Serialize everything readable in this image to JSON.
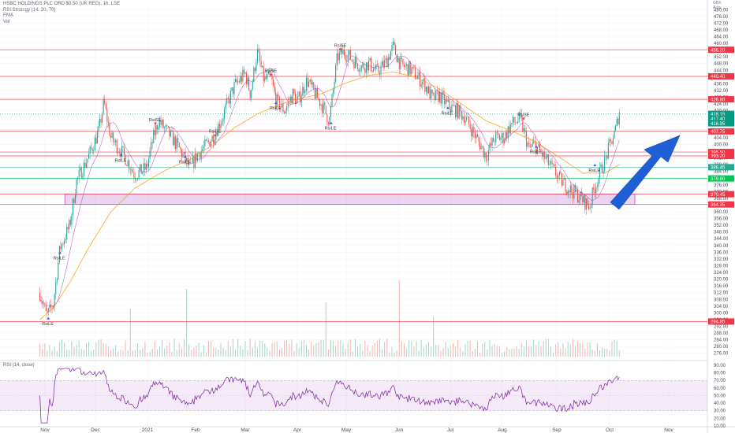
{
  "chart_data": {
    "type": "candlestick",
    "legend": {
      "symbol_line": "HSBC HOLDINGS PLC ORD $0.50 (UK REG), 1h, LSE",
      "indicators": [
        "RSI Strategy (14, 30, 70)",
        "EMA",
        "Vol"
      ]
    },
    "top_right": [
      "GBX",
      "Auto"
    ],
    "price_axis": {
      "ylim": [
        274,
        482
      ],
      "ticks": [
        "276.00",
        "280.00",
        "284.00",
        "288.00",
        "292.00",
        "296.00",
        "300.00",
        "304.00",
        "308.00",
        "312.00",
        "316.00",
        "320.00",
        "324.00",
        "328.00",
        "332.00",
        "336.00",
        "340.00",
        "344.00",
        "348.00",
        "352.00",
        "356.00",
        "360.00",
        "364.00",
        "368.00",
        "372.00",
        "376.00",
        "380.00",
        "384.00",
        "388.00",
        "392.00",
        "396.00",
        "400.00",
        "404.00",
        "408.00",
        "412.00",
        "416.00",
        "420.00",
        "424.00",
        "428.00",
        "432.00",
        "436.00",
        "440.00",
        "444.00",
        "448.00",
        "452.00",
        "456.00",
        "460.00",
        "464.00",
        "468.00",
        "472.00",
        "476.00",
        "480.00"
      ]
    },
    "x_axis": {
      "labels": [
        "Nov",
        "Dec",
        "2021",
        "Feb",
        "Mar",
        "Apr",
        "May",
        "Jun",
        "Jul",
        "Aug",
        "Sep",
        "Oct",
        "Nov"
      ]
    },
    "price_path": [
      [
        "Oct-28",
        312
      ],
      [
        "Nov-02",
        298
      ],
      [
        "Nov-06",
        305
      ],
      [
        "Nov-10",
        338
      ],
      [
        "Nov-16",
        352
      ],
      [
        "Nov-20",
        378
      ],
      [
        "Nov-27",
        392
      ],
      [
        "Dec-03",
        408
      ],
      [
        "Dec-06",
        425
      ],
      [
        "Dec-10",
        404
      ],
      [
        "Dec-16",
        396
      ],
      [
        "Dec-21",
        388
      ],
      [
        "Dec-24",
        382
      ],
      [
        "Dec-31",
        386
      ],
      [
        "Jan-05",
        405
      ],
      [
        "Jan-08",
        414
      ],
      [
        "Jan-13",
        408
      ],
      [
        "Jan-18",
        402
      ],
      [
        "Jan-22",
        396
      ],
      [
        "Jan-28",
        385
      ],
      [
        "Feb-02",
        394
      ],
      [
        "Feb-08",
        400
      ],
      [
        "Feb-12",
        405
      ],
      [
        "Feb-17",
        415
      ],
      [
        "Feb-22",
        428
      ],
      [
        "Feb-25",
        435
      ],
      [
        "Mar-01",
        442
      ],
      [
        "Mar-04",
        430
      ],
      [
        "Mar-08",
        455
      ],
      [
        "Mar-12",
        438
      ],
      [
        "Mar-16",
        440
      ],
      [
        "Mar-19",
        426
      ],
      [
        "Mar-24",
        420
      ],
      [
        "Mar-29",
        430
      ],
      [
        "Apr-01",
        425
      ],
      [
        "Apr-07",
        438
      ],
      [
        "Apr-12",
        430
      ],
      [
        "Apr-16",
        424
      ],
      [
        "Apr-21",
        414
      ],
      [
        "Apr-26",
        452
      ],
      [
        "Apr-30",
        455
      ],
      [
        "May-05",
        450
      ],
      [
        "May-10",
        446
      ],
      [
        "May-14",
        448
      ],
      [
        "May-19",
        443
      ],
      [
        "May-24",
        449
      ],
      [
        "May-28",
        458
      ],
      [
        "Jun-02",
        447
      ],
      [
        "Jun-07",
        445
      ],
      [
        "Jun-11",
        441
      ],
      [
        "Jun-16",
        436
      ],
      [
        "Jun-21",
        427
      ],
      [
        "Jun-25",
        429
      ],
      [
        "Jun-30",
        423
      ],
      [
        "Jul-05",
        420
      ],
      [
        "Jul-09",
        417
      ],
      [
        "Jul-14",
        408
      ],
      [
        "Jul-19",
        399
      ],
      [
        "Jul-22",
        393
      ],
      [
        "Jul-27",
        404
      ],
      [
        "Aug-02",
        404
      ],
      [
        "Aug-06",
        412
      ],
      [
        "Aug-11",
        415
      ],
      [
        "Aug-16",
        397
      ],
      [
        "Aug-19",
        400
      ],
      [
        "Aug-24",
        393
      ],
      [
        "Aug-30",
        384
      ],
      [
        "Sep-03",
        379
      ],
      [
        "Sep-09",
        373
      ],
      [
        "Sep-13",
        370
      ],
      [
        "Sep-16",
        367
      ],
      [
        "Sep-20",
        363
      ],
      [
        "Sep-22",
        372
      ],
      [
        "Sep-27",
        386
      ],
      [
        "Sep-29",
        391
      ],
      [
        "Oct-01",
        399
      ],
      [
        "Oct-04",
        408
      ],
      [
        "Oct-06",
        420
      ]
    ],
    "ema_path": [
      [
        "Oct-28",
        296
      ],
      [
        "Nov-06",
        303
      ],
      [
        "Nov-16",
        318
      ],
      [
        "Nov-27",
        338
      ],
      [
        "Dec-10",
        360
      ],
      [
        "Dec-24",
        374
      ],
      [
        "Jan-13",
        385
      ],
      [
        "Jan-28",
        391
      ],
      [
        "Feb-12",
        400
      ],
      [
        "Feb-25",
        410
      ],
      [
        "Mar-08",
        418
      ],
      [
        "Mar-19",
        423
      ],
      [
        "Apr-01",
        427
      ],
      [
        "Apr-16",
        430
      ],
      [
        "Apr-30",
        436
      ],
      [
        "May-14",
        441
      ],
      [
        "May-28",
        443
      ],
      [
        "Jun-11",
        440
      ],
      [
        "Jun-25",
        433
      ],
      [
        "Jul-09",
        423
      ],
      [
        "Jul-22",
        414
      ],
      [
        "Aug-06",
        408
      ],
      [
        "Aug-19",
        402
      ],
      [
        "Sep-03",
        392
      ],
      [
        "Sep-16",
        383
      ],
      [
        "Sep-29",
        383
      ],
      [
        "Oct-06",
        388
      ]
    ],
    "resistance_levels": [
      {
        "price": 456.2,
        "label": "456.20",
        "color": "#f23645"
      },
      {
        "price": 440.4,
        "label": "440.40",
        "color": "#f23645"
      },
      {
        "price": 426.8,
        "label": "426.80",
        "color": "#f23645"
      },
      {
        "price": 407.75,
        "label": "407.75",
        "color": "#f23645"
      },
      {
        "price": 395.5,
        "label": "395.50",
        "color": "#f23645"
      },
      {
        "price": 393.2,
        "label": "393.20",
        "color": "#f23645"
      },
      {
        "price": 370.45,
        "label": "370.45",
        "color": "#f23645"
      },
      {
        "price": 364.35,
        "label": "364.35",
        "color": "#f23645"
      },
      {
        "price": 294.85,
        "label": "294.85",
        "color": "#f23645"
      }
    ],
    "support_levels": [
      {
        "price": 386.45,
        "label": "386.45",
        "color": "#22ab94"
      },
      {
        "price": 379.8,
        "label": "379.80",
        "color": "#00c853"
      }
    ],
    "current_price": {
      "price": 418.15,
      "label": "418.15",
      "extra": [
        "417.40",
        "416.95"
      ],
      "color": "#089981"
    },
    "zone": {
      "top": 370.45,
      "bottom": 364.35,
      "from": "Nov-13",
      "to": "Oct-15"
    },
    "arrow": {
      "color": "#1e5fd6"
    },
    "signals": [
      {
        "text": "RsiLE",
        "date": "Nov-03",
        "price": 297
      },
      {
        "text": "RsiLE",
        "date": "Nov-10",
        "price": 336
      },
      {
        "text": "RsiLE",
        "date": "Dec-16",
        "price": 394
      },
      {
        "text": "RsiSE",
        "date": "Jan-06",
        "price": 412
      },
      {
        "text": "RsiLE",
        "date": "Jan-25",
        "price": 393
      },
      {
        "text": "RsiSE",
        "date": "Feb-13",
        "price": 405
      },
      {
        "text": "RsiSE",
        "date": "Mar-16",
        "price": 441
      },
      {
        "text": "RsiLE",
        "date": "Mar-19",
        "price": 425
      },
      {
        "text": "RsiLE",
        "date": "Apr-22",
        "price": 413
      },
      {
        "text": "RsiSE",
        "date": "Apr-28",
        "price": 456
      },
      {
        "text": "RsiLE",
        "date": "Jun-30",
        "price": 422
      },
      {
        "text": "RsiSE",
        "date": "Aug-13",
        "price": 415
      },
      {
        "text": "RsiLE",
        "date": "Aug-20",
        "price": 399
      },
      {
        "text": "RsiLE",
        "date": "Sep-23",
        "price": 388
      }
    ],
    "rsi": {
      "title": "RSI (14, close)",
      "ylim": [
        10,
        92
      ],
      "ticks": [
        "10.00",
        "20.00",
        "30.00",
        "40.00",
        "50.00",
        "60.00",
        "70.00",
        "80.00",
        "90.00"
      ],
      "band": [
        30,
        70
      ],
      "color": "#7b1fa2"
    },
    "volume": {
      "up_color": "#a5d6c9",
      "down_color": "#f5b5b0"
    }
  }
}
